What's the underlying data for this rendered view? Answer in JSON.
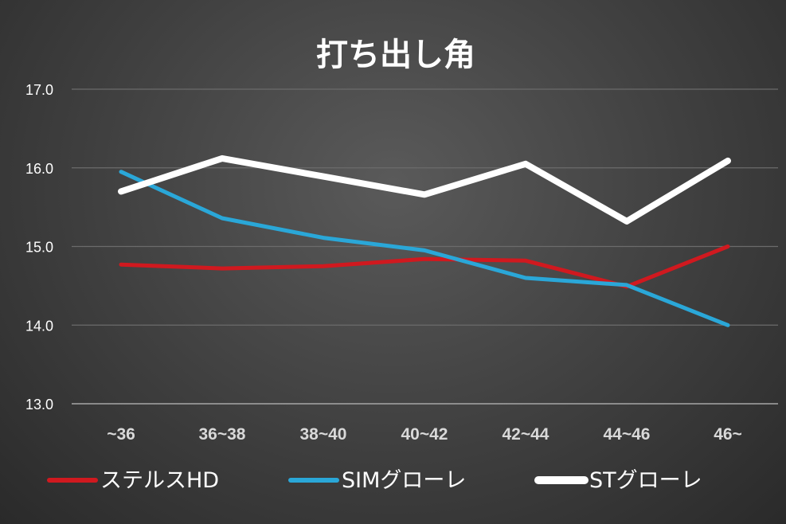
{
  "chart_data": {
    "type": "line",
    "title": "打ち出し角",
    "xlabel": "",
    "ylabel": "",
    "categories": [
      "~36",
      "36~38",
      "38~40",
      "40~42",
      "42~44",
      "44~46",
      "46~"
    ],
    "ylim": [
      13.0,
      17.0
    ],
    "yticks": [
      "13.0",
      "14.0",
      "15.0",
      "16.0",
      "17.0"
    ],
    "grid": true,
    "legend_position": "bottom",
    "series": [
      {
        "name": "ステルスHD",
        "color": "#d0191f",
        "values": [
          14.77,
          14.72,
          14.75,
          14.84,
          14.82,
          14.49,
          15.0
        ]
      },
      {
        "name": "SIMグローレ",
        "color": "#2aa7d8",
        "values": [
          15.95,
          15.36,
          15.11,
          14.95,
          14.6,
          14.51,
          14.0
        ]
      },
      {
        "name": "STグローレ",
        "color": "#ffffff",
        "values": [
          15.7,
          16.12,
          15.89,
          15.66,
          16.05,
          15.32,
          16.09
        ]
      }
    ]
  }
}
